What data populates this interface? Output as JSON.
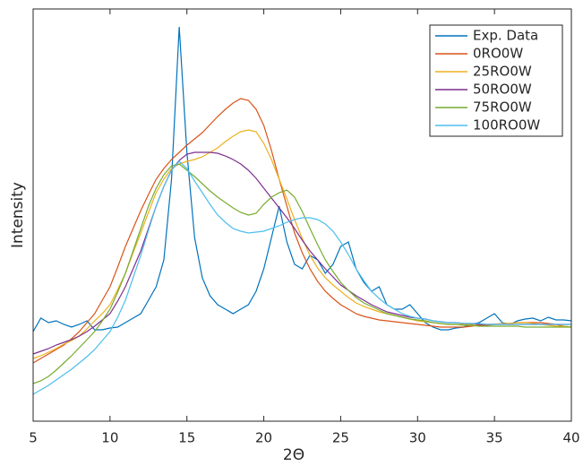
{
  "chart_data": {
    "type": "line",
    "xlabel": "2Θ",
    "ylabel": "Intensity",
    "x": [
      5,
      5.5,
      6,
      6.5,
      7,
      7.5,
      8,
      8.5,
      9,
      9.5,
      10,
      10.5,
      11,
      11.5,
      12,
      12.5,
      13,
      13.5,
      14,
      14.5,
      15,
      15.5,
      16,
      16.5,
      17,
      17.5,
      18,
      18.5,
      19,
      19.5,
      20,
      20.5,
      21,
      21.5,
      22,
      22.5,
      23,
      23.5,
      24,
      24.5,
      25,
      25.5,
      26,
      26.5,
      27,
      27.5,
      28,
      28.5,
      29,
      29.5,
      30,
      30.5,
      31,
      31.5,
      32,
      32.5,
      33,
      33.5,
      34,
      34.5,
      35,
      35.5,
      36,
      36.5,
      37,
      37.5,
      38,
      38.5,
      39,
      39.5,
      40
    ],
    "xlim": [
      5,
      40
    ],
    "xticks": [
      5,
      10,
      15,
      20,
      25,
      30,
      35,
      40
    ],
    "ylim": [
      0,
      46
    ],
    "legend": "northeast",
    "series": [
      {
        "name": "Exp. Data",
        "color": "#0072BD",
        "values": [
          10.0,
          11.5,
          11.0,
          11.2,
          10.8,
          10.5,
          10.8,
          11.2,
          10.2,
          10.2,
          10.4,
          10.5,
          11.0,
          11.5,
          12.0,
          13.5,
          15.0,
          18.0,
          27.0,
          44.0,
          30.0,
          20.5,
          16.0,
          14.0,
          13.0,
          12.5,
          12.0,
          12.5,
          13.0,
          14.5,
          17.0,
          20.5,
          24.0,
          20.0,
          17.5,
          17.0,
          18.5,
          18.0,
          16.5,
          17.5,
          19.5,
          20.0,
          17.0,
          15.5,
          14.5,
          15.0,
          13.0,
          12.5,
          12.5,
          13.0,
          12.0,
          11.0,
          10.5,
          10.2,
          10.2,
          10.4,
          10.5,
          10.8,
          11.0,
          11.5,
          12.0,
          11.0,
          10.8,
          11.2,
          11.4,
          11.5,
          11.2,
          11.6,
          11.3,
          11.3,
          11.2
        ]
      },
      {
        "name": "0RO0W",
        "color": "#D95319",
        "values": [
          6.5,
          7.0,
          7.5,
          8.0,
          8.5,
          9.2,
          10.0,
          11.0,
          12.0,
          13.5,
          15.0,
          17.2,
          19.5,
          21.5,
          23.5,
          25.3,
          27.0,
          28.2,
          29.2,
          30.0,
          30.8,
          31.5,
          32.2,
          33.1,
          34.0,
          34.8,
          35.5,
          36.0,
          35.8,
          34.8,
          33.0,
          30.2,
          27.0,
          24.0,
          21.0,
          18.8,
          17.0,
          15.6,
          14.5,
          13.7,
          13.0,
          12.5,
          12.0,
          11.7,
          11.5,
          11.3,
          11.2,
          11.1,
          11.0,
          10.9,
          10.8,
          10.7,
          10.6,
          10.5,
          10.5,
          10.5,
          10.5,
          10.6,
          10.7,
          10.7,
          10.8,
          10.9,
          10.9,
          11.0,
          11.0,
          11.0,
          11.0,
          10.9,
          10.8,
          10.6,
          10.5
        ]
      },
      {
        "name": "25RO0W",
        "color": "#EDB120",
        "values": [
          7.0,
          7.3,
          7.7,
          8.1,
          8.6,
          9.0,
          9.5,
          10.3,
          11.2,
          12.0,
          13.0,
          14.7,
          16.5,
          18.8,
          21.0,
          23.3,
          25.5,
          27.0,
          28.2,
          28.7,
          29.0,
          29.2,
          29.5,
          30.0,
          30.5,
          31.2,
          31.8,
          32.3,
          32.5,
          32.3,
          31.0,
          29.2,
          27.0,
          24.8,
          22.5,
          20.4,
          18.5,
          17.1,
          16.0,
          15.2,
          14.5,
          13.8,
          13.2,
          12.8,
          12.5,
          12.2,
          12.0,
          11.8,
          11.6,
          11.4,
          11.2,
          11.1,
          11.0,
          10.9,
          10.8,
          10.8,
          10.8,
          10.8,
          10.8,
          10.8,
          10.8,
          10.9,
          10.9,
          11.0,
          11.0,
          10.9,
          10.8,
          10.7,
          10.6,
          10.6,
          10.5
        ]
      },
      {
        "name": "50RO0W",
        "color": "#7E2F8E",
        "values": [
          7.5,
          7.8,
          8.1,
          8.5,
          8.8,
          9.1,
          9.5,
          10.0,
          10.6,
          11.3,
          12.0,
          13.4,
          15.0,
          17.0,
          19.0,
          21.5,
          24.0,
          26.2,
          28.0,
          29.1,
          29.8,
          30.0,
          30.0,
          30.0,
          29.9,
          29.6,
          29.2,
          28.7,
          28.0,
          27.1,
          26.0,
          24.9,
          23.8,
          22.7,
          21.5,
          20.2,
          19.0,
          18.0,
          17.0,
          16.1,
          15.2,
          14.6,
          14.0,
          13.5,
          13.0,
          12.6,
          12.2,
          12.0,
          11.8,
          11.6,
          11.5,
          11.4,
          11.2,
          11.1,
          11.0,
          11.0,
          10.9,
          10.9,
          10.8,
          10.8,
          10.8,
          10.8,
          10.8,
          10.8,
          10.8,
          10.8,
          10.8,
          10.8,
          10.8,
          10.8,
          10.8
        ]
      },
      {
        "name": "75RO0W",
        "color": "#77AC30",
        "values": [
          4.2,
          4.5,
          5.0,
          5.7,
          6.5,
          7.3,
          8.2,
          9.1,
          10.0,
          11.2,
          12.5,
          14.4,
          16.5,
          19.0,
          21.5,
          24.0,
          26.0,
          27.5,
          28.5,
          28.7,
          28.0,
          27.3,
          26.5,
          25.7,
          25.0,
          24.4,
          23.8,
          23.3,
          23.0,
          23.2,
          24.2,
          25.0,
          25.5,
          25.8,
          25.0,
          23.4,
          21.5,
          19.7,
          18.0,
          16.7,
          15.5,
          14.6,
          13.8,
          13.2,
          12.8,
          12.4,
          12.0,
          11.8,
          11.6,
          11.4,
          11.3,
          11.2,
          11.0,
          10.9,
          10.8,
          10.8,
          10.7,
          10.7,
          10.6,
          10.6,
          10.6,
          10.6,
          10.6,
          10.6,
          10.5,
          10.5,
          10.5,
          10.5,
          10.5,
          10.5,
          10.5
        ]
      },
      {
        "name": "100RO0W",
        "color": "#4DBEEE",
        "values": [
          3.0,
          3.5,
          4.0,
          4.6,
          5.2,
          5.8,
          6.5,
          7.2,
          8.0,
          9.0,
          10.0,
          11.6,
          13.5,
          16.0,
          18.5,
          21.3,
          24.0,
          26.2,
          28.0,
          29.0,
          28.2,
          26.8,
          25.5,
          24.2,
          23.0,
          22.2,
          21.5,
          21.2,
          21.0,
          21.1,
          21.2,
          21.5,
          21.8,
          22.2,
          22.5,
          22.7,
          22.7,
          22.5,
          22.0,
          21.2,
          20.0,
          18.6,
          17.0,
          15.7,
          14.5,
          13.7,
          13.0,
          12.5,
          12.0,
          11.7,
          11.5,
          11.4,
          11.2,
          11.1,
          11.0,
          11.0,
          10.9,
          10.9,
          10.9,
          10.8,
          10.8,
          10.8,
          10.8,
          10.8,
          10.8,
          10.8,
          10.8,
          10.8,
          10.8,
          10.8,
          10.8
        ]
      }
    ]
  }
}
